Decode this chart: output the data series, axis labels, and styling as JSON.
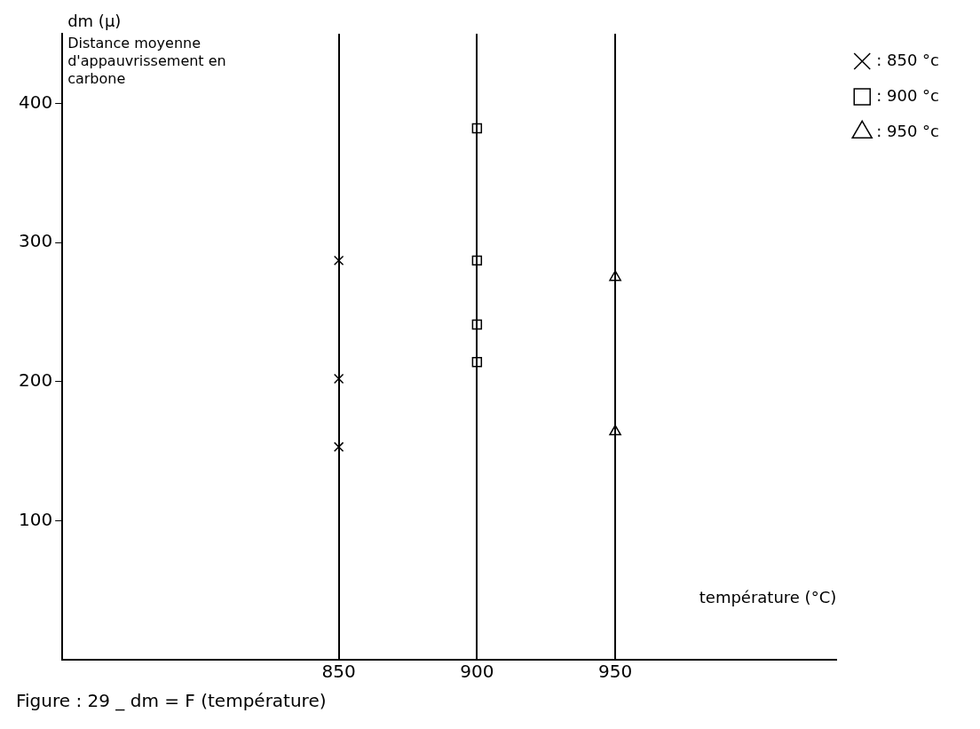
{
  "chart_data": {
    "type": "scatter",
    "title": "Figure : 29 _ dm = F (température)",
    "xlabel": "température (°C)",
    "ylabel": "dm (µ)",
    "annotations": [
      "Distance moyenne d'appauvrissement en carbone"
    ],
    "xlim": [
      750,
      1030
    ],
    "xticks": [
      850,
      900,
      950
    ],
    "ylim": [
      0,
      450
    ],
    "yticks": [
      100,
      200,
      300,
      400
    ],
    "grid": "x",
    "legend": "top right",
    "series": [
      {
        "name": ": 850 °c",
        "color": "#000000",
        "marker": "cross",
        "x": [
          850,
          850,
          850
        ],
        "values": [
          287,
          202,
          153
        ]
      },
      {
        "name": ": 900 °c",
        "color": "#000000",
        "marker": "square",
        "x": [
          900,
          900,
          900,
          900
        ],
        "values": [
          382,
          287,
          241,
          214
        ]
      },
      {
        "name": ": 950 °c",
        "color": "#000000",
        "marker": "triangle",
        "x": [
          950,
          950
        ],
        "values": [
          275,
          164
        ]
      }
    ]
  }
}
